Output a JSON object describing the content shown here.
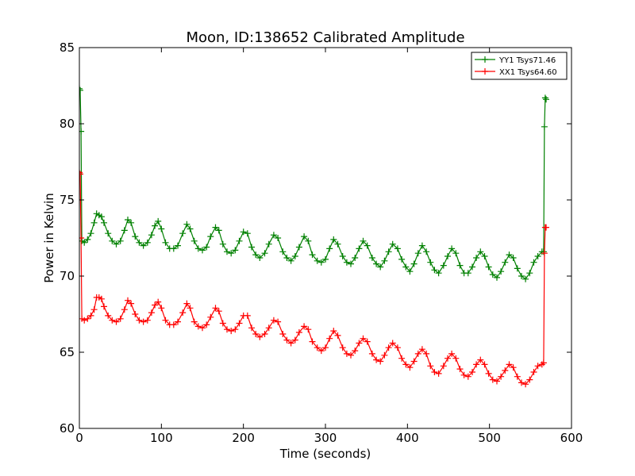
{
  "chart_data": {
    "type": "line",
    "title": "Moon, ID:138652 Calibrated Amplitude",
    "xlabel": "Time (seconds)",
    "ylabel": "Power in Kelvin",
    "xlim": [
      0,
      600
    ],
    "ylim": [
      60,
      85
    ],
    "xticks": [
      0,
      100,
      200,
      300,
      400,
      500,
      600
    ],
    "yticks": [
      60,
      65,
      70,
      75,
      80,
      85
    ],
    "grid": false,
    "legend_position": "top-right",
    "marker": "+",
    "series": [
      {
        "name": "YY1 Tsys71.46",
        "color": "#008000",
        "points": [
          [
            0,
            82.3
          ],
          [
            1,
            82.2
          ],
          [
            2,
            79.5
          ],
          [
            3,
            72.3
          ],
          [
            6,
            72.2
          ],
          [
            10,
            72.4
          ],
          [
            14,
            72.8
          ],
          [
            18,
            73.5
          ],
          [
            21,
            74.1
          ],
          [
            24,
            74.0
          ],
          [
            27,
            73.9
          ],
          [
            30,
            73.5
          ],
          [
            35,
            72.8
          ],
          [
            40,
            72.3
          ],
          [
            45,
            72.1
          ],
          [
            50,
            72.3
          ],
          [
            55,
            73.0
          ],
          [
            59,
            73.7
          ],
          [
            63,
            73.5
          ],
          [
            68,
            72.6
          ],
          [
            73,
            72.2
          ],
          [
            78,
            72.0
          ],
          [
            83,
            72.2
          ],
          [
            88,
            72.7
          ],
          [
            92,
            73.3
          ],
          [
            96,
            73.6
          ],
          [
            100,
            73.1
          ],
          [
            105,
            72.2
          ],
          [
            110,
            71.8
          ],
          [
            115,
            71.8
          ],
          [
            120,
            72.0
          ],
          [
            126,
            72.8
          ],
          [
            131,
            73.4
          ],
          [
            135,
            73.1
          ],
          [
            140,
            72.3
          ],
          [
            145,
            71.8
          ],
          [
            150,
            71.7
          ],
          [
            155,
            71.9
          ],
          [
            160,
            72.6
          ],
          [
            166,
            73.2
          ],
          [
            170,
            73.0
          ],
          [
            175,
            72.1
          ],
          [
            180,
            71.6
          ],
          [
            185,
            71.5
          ],
          [
            190,
            71.7
          ],
          [
            195,
            72.3
          ],
          [
            200,
            72.9
          ],
          [
            205,
            72.8
          ],
          [
            210,
            71.9
          ],
          [
            215,
            71.4
          ],
          [
            220,
            71.2
          ],
          [
            226,
            71.5
          ],
          [
            231,
            72.1
          ],
          [
            237,
            72.7
          ],
          [
            242,
            72.5
          ],
          [
            248,
            71.6
          ],
          [
            253,
            71.2
          ],
          [
            258,
            71.0
          ],
          [
            263,
            71.3
          ],
          [
            268,
            71.9
          ],
          [
            274,
            72.6
          ],
          [
            279,
            72.3
          ],
          [
            284,
            71.4
          ],
          [
            290,
            71.0
          ],
          [
            295,
            70.9
          ],
          [
            300,
            71.1
          ],
          [
            305,
            71.8
          ],
          [
            310,
            72.4
          ],
          [
            315,
            72.1
          ],
          [
            321,
            71.3
          ],
          [
            326,
            70.9
          ],
          [
            331,
            70.8
          ],
          [
            336,
            71.2
          ],
          [
            341,
            71.8
          ],
          [
            346,
            72.3
          ],
          [
            351,
            72.0
          ],
          [
            357,
            71.2
          ],
          [
            362,
            70.8
          ],
          [
            367,
            70.6
          ],
          [
            372,
            71.0
          ],
          [
            377,
            71.6
          ],
          [
            382,
            72.1
          ],
          [
            388,
            71.8
          ],
          [
            393,
            71.1
          ],
          [
            398,
            70.6
          ],
          [
            403,
            70.3
          ],
          [
            408,
            70.8
          ],
          [
            413,
            71.5
          ],
          [
            418,
            72.0
          ],
          [
            423,
            71.6
          ],
          [
            428,
            70.9
          ],
          [
            433,
            70.4
          ],
          [
            438,
            70.2
          ],
          [
            444,
            70.7
          ],
          [
            449,
            71.3
          ],
          [
            454,
            71.8
          ],
          [
            459,
            71.5
          ],
          [
            464,
            70.7
          ],
          [
            469,
            70.2
          ],
          [
            474,
            70.2
          ],
          [
            479,
            70.6
          ],
          [
            484,
            71.2
          ],
          [
            489,
            71.6
          ],
          [
            494,
            71.3
          ],
          [
            499,
            70.6
          ],
          [
            504,
            70.1
          ],
          [
            509,
            69.9
          ],
          [
            514,
            70.3
          ],
          [
            519,
            70.9
          ],
          [
            524,
            71.4
          ],
          [
            529,
            71.2
          ],
          [
            534,
            70.5
          ],
          [
            539,
            70.0
          ],
          [
            544,
            69.8
          ],
          [
            549,
            70.2
          ],
          [
            554,
            70.9
          ],
          [
            559,
            71.3
          ],
          [
            564,
            71.6
          ],
          [
            566,
            71.6
          ],
          [
            567,
            79.8
          ],
          [
            568,
            81.7
          ],
          [
            569,
            81.6
          ]
        ]
      },
      {
        "name": "XX1 Tsys64.60",
        "color": "#ff0000",
        "points": [
          [
            0,
            76.8
          ],
          [
            1,
            76.7
          ],
          [
            2,
            72.5
          ],
          [
            3,
            67.2
          ],
          [
            6,
            67.1
          ],
          [
            10,
            67.2
          ],
          [
            14,
            67.4
          ],
          [
            18,
            67.8
          ],
          [
            21,
            68.6
          ],
          [
            24,
            68.6
          ],
          [
            27,
            68.5
          ],
          [
            30,
            68.0
          ],
          [
            35,
            67.4
          ],
          [
            40,
            67.1
          ],
          [
            45,
            67.0
          ],
          [
            50,
            67.2
          ],
          [
            55,
            67.8
          ],
          [
            59,
            68.4
          ],
          [
            63,
            68.2
          ],
          [
            68,
            67.5
          ],
          [
            73,
            67.1
          ],
          [
            78,
            67.0
          ],
          [
            83,
            67.1
          ],
          [
            88,
            67.6
          ],
          [
            92,
            68.1
          ],
          [
            96,
            68.3
          ],
          [
            100,
            67.9
          ],
          [
            105,
            67.1
          ],
          [
            110,
            66.8
          ],
          [
            115,
            66.8
          ],
          [
            120,
            67.0
          ],
          [
            126,
            67.6
          ],
          [
            131,
            68.2
          ],
          [
            135,
            67.9
          ],
          [
            140,
            67.0
          ],
          [
            145,
            66.7
          ],
          [
            150,
            66.6
          ],
          [
            155,
            66.8
          ],
          [
            160,
            67.3
          ],
          [
            166,
            67.9
          ],
          [
            170,
            67.7
          ],
          [
            175,
            66.9
          ],
          [
            180,
            66.5
          ],
          [
            185,
            66.4
          ],
          [
            190,
            66.5
          ],
          [
            195,
            66.9
          ],
          [
            200,
            67.4
          ],
          [
            205,
            67.4
          ],
          [
            210,
            66.6
          ],
          [
            215,
            66.2
          ],
          [
            220,
            66.0
          ],
          [
            226,
            66.2
          ],
          [
            231,
            66.6
          ],
          [
            237,
            67.1
          ],
          [
            242,
            67.0
          ],
          [
            248,
            66.2
          ],
          [
            253,
            65.8
          ],
          [
            258,
            65.6
          ],
          [
            263,
            65.8
          ],
          [
            268,
            66.3
          ],
          [
            274,
            66.7
          ],
          [
            279,
            66.5
          ],
          [
            284,
            65.7
          ],
          [
            290,
            65.3
          ],
          [
            295,
            65.1
          ],
          [
            300,
            65.3
          ],
          [
            305,
            65.9
          ],
          [
            310,
            66.4
          ],
          [
            315,
            66.1
          ],
          [
            321,
            65.3
          ],
          [
            326,
            64.9
          ],
          [
            331,
            64.8
          ],
          [
            336,
            65.1
          ],
          [
            341,
            65.6
          ],
          [
            346,
            65.9
          ],
          [
            351,
            65.7
          ],
          [
            357,
            64.9
          ],
          [
            362,
            64.5
          ],
          [
            367,
            64.4
          ],
          [
            372,
            64.8
          ],
          [
            377,
            65.3
          ],
          [
            382,
            65.6
          ],
          [
            388,
            65.3
          ],
          [
            393,
            64.6
          ],
          [
            398,
            64.2
          ],
          [
            403,
            64.0
          ],
          [
            408,
            64.4
          ],
          [
            413,
            64.9
          ],
          [
            418,
            65.2
          ],
          [
            423,
            64.9
          ],
          [
            428,
            64.1
          ],
          [
            433,
            63.7
          ],
          [
            438,
            63.6
          ],
          [
            444,
            64.1
          ],
          [
            449,
            64.6
          ],
          [
            454,
            64.9
          ],
          [
            459,
            64.6
          ],
          [
            464,
            63.9
          ],
          [
            469,
            63.5
          ],
          [
            474,
            63.4
          ],
          [
            479,
            63.7
          ],
          [
            484,
            64.2
          ],
          [
            489,
            64.5
          ],
          [
            494,
            64.2
          ],
          [
            499,
            63.6
          ],
          [
            504,
            63.2
          ],
          [
            509,
            63.1
          ],
          [
            514,
            63.4
          ],
          [
            519,
            63.8
          ],
          [
            524,
            64.2
          ],
          [
            529,
            64.0
          ],
          [
            534,
            63.4
          ],
          [
            539,
            63.0
          ],
          [
            544,
            62.9
          ],
          [
            549,
            63.2
          ],
          [
            554,
            63.7
          ],
          [
            559,
            64.1
          ],
          [
            564,
            64.2
          ],
          [
            566,
            64.3
          ],
          [
            567,
            71.5
          ],
          [
            568,
            73.2
          ],
          [
            569,
            73.2
          ]
        ]
      }
    ]
  }
}
